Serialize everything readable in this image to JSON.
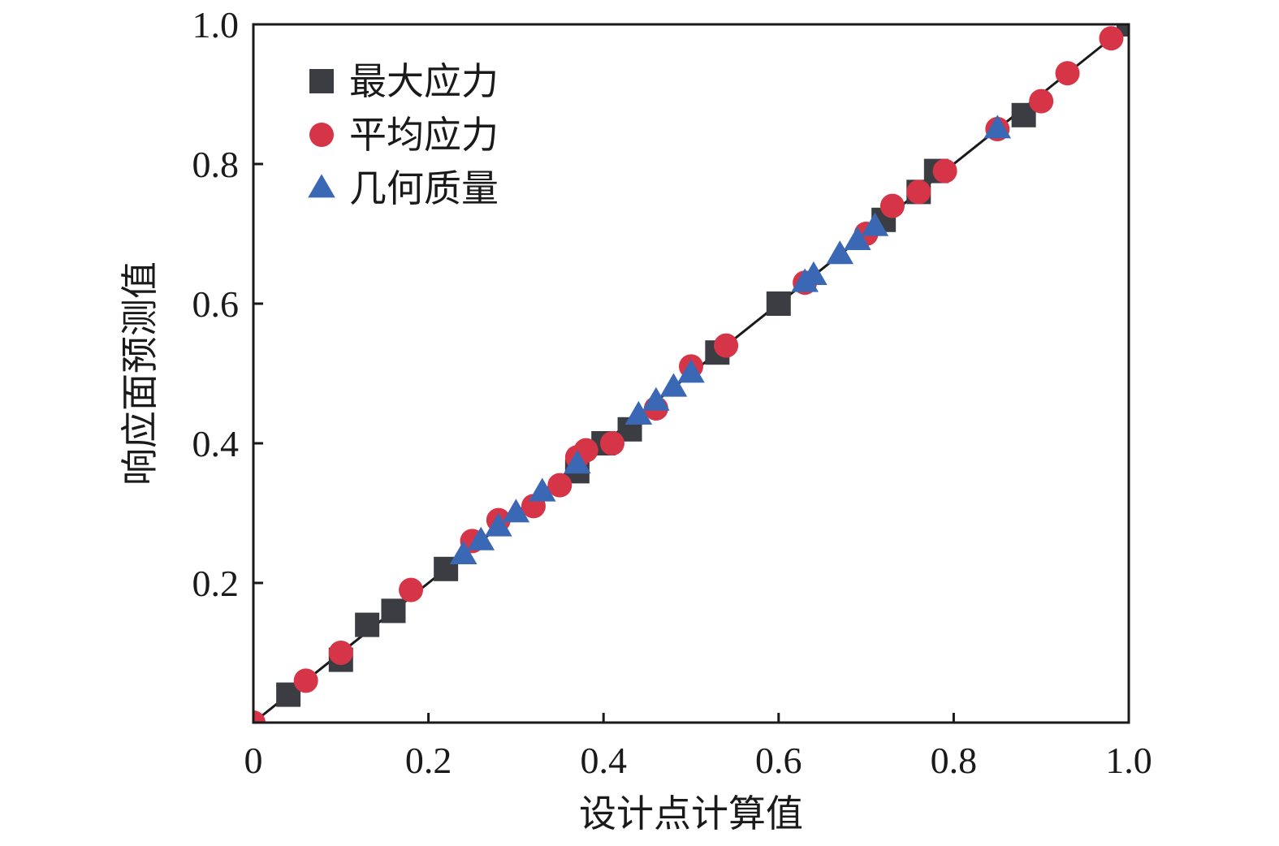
{
  "chart_data": {
    "type": "scatter",
    "xlabel": "设计点计算值",
    "ylabel": "响应面预测值",
    "xlim": [
      0,
      1.0
    ],
    "ylim": [
      0,
      1.0
    ],
    "x_ticks": [
      0,
      0.2,
      0.4,
      0.6,
      0.8,
      1.0
    ],
    "x_tick_labels": [
      "0",
      "0.2",
      "0.4",
      "0.6",
      "0.8",
      "1.0"
    ],
    "y_ticks": [
      0.2,
      0.4,
      0.6,
      0.8,
      1.0
    ],
    "y_tick_labels": [
      "0.2",
      "0.4",
      "0.6",
      "0.8",
      "1.0"
    ],
    "legend_position": "top-left",
    "reference_line": {
      "from": [
        0,
        0
      ],
      "to": [
        1.0,
        1.0
      ],
      "color": "#1a1a1a"
    },
    "series": [
      {
        "name": "最大应力",
        "marker": "square",
        "color": "#3c3d42",
        "points": [
          [
            0.04,
            0.04
          ],
          [
            0.1,
            0.09
          ],
          [
            0.13,
            0.14
          ],
          [
            0.16,
            0.16
          ],
          [
            0.22,
            0.22
          ],
          [
            0.37,
            0.36
          ],
          [
            0.4,
            0.4
          ],
          [
            0.43,
            0.42
          ],
          [
            0.53,
            0.53
          ],
          [
            0.6,
            0.6
          ],
          [
            0.72,
            0.72
          ],
          [
            0.76,
            0.76
          ],
          [
            0.78,
            0.79
          ],
          [
            0.88,
            0.87
          ],
          [
            1.0,
            1.0
          ]
        ]
      },
      {
        "name": "平均应力",
        "marker": "circle",
        "color": "#d63548",
        "points": [
          [
            0.0,
            0.0
          ],
          [
            0.06,
            0.06
          ],
          [
            0.1,
            0.1
          ],
          [
            0.18,
            0.19
          ],
          [
            0.25,
            0.26
          ],
          [
            0.28,
            0.29
          ],
          [
            0.32,
            0.31
          ],
          [
            0.35,
            0.34
          ],
          [
            0.37,
            0.38
          ],
          [
            0.38,
            0.39
          ],
          [
            0.41,
            0.4
          ],
          [
            0.46,
            0.45
          ],
          [
            0.5,
            0.51
          ],
          [
            0.54,
            0.54
          ],
          [
            0.63,
            0.63
          ],
          [
            0.7,
            0.7
          ],
          [
            0.73,
            0.74
          ],
          [
            0.76,
            0.76
          ],
          [
            0.79,
            0.79
          ],
          [
            0.85,
            0.85
          ],
          [
            0.9,
            0.89
          ],
          [
            0.93,
            0.93
          ],
          [
            0.98,
            0.98
          ]
        ]
      },
      {
        "name": "几何质量",
        "marker": "triangle",
        "color": "#3b68b4",
        "points": [
          [
            0.24,
            0.24
          ],
          [
            0.26,
            0.26
          ],
          [
            0.28,
            0.28
          ],
          [
            0.3,
            0.3
          ],
          [
            0.33,
            0.33
          ],
          [
            0.37,
            0.37
          ],
          [
            0.44,
            0.44
          ],
          [
            0.46,
            0.46
          ],
          [
            0.48,
            0.48
          ],
          [
            0.5,
            0.5
          ],
          [
            0.63,
            0.63
          ],
          [
            0.64,
            0.64
          ],
          [
            0.67,
            0.67
          ],
          [
            0.69,
            0.69
          ],
          [
            0.71,
            0.71
          ],
          [
            0.85,
            0.85
          ]
        ]
      }
    ]
  }
}
